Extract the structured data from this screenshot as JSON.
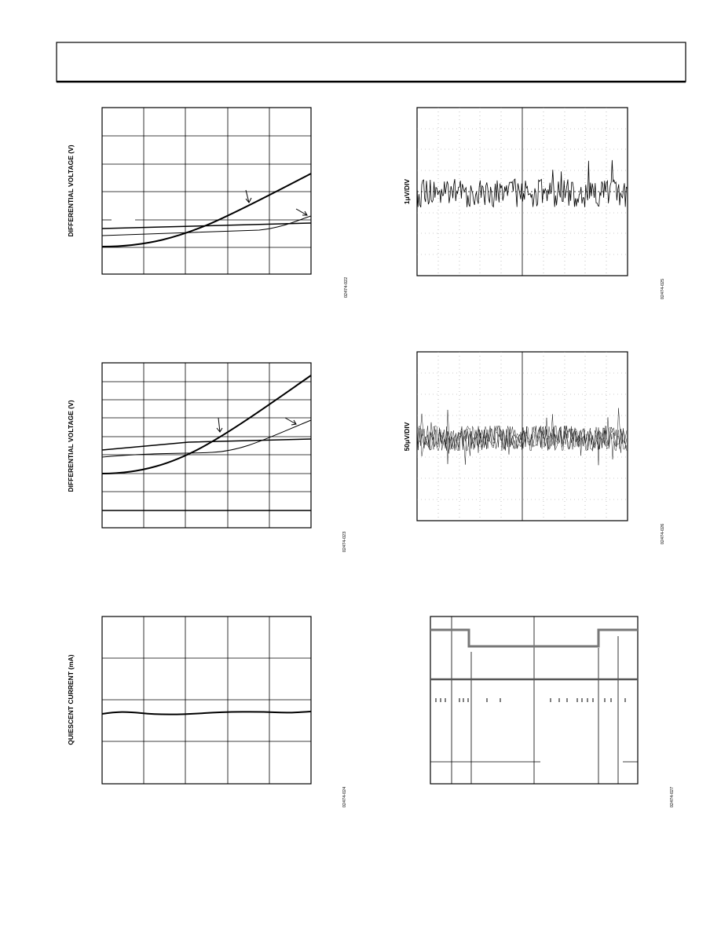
{
  "figures": [
    {
      "y_label": "DIFFERENTIAL VOLTAGE (V)",
      "code": "02474-022"
    },
    {
      "y_label": "1μV/DIV",
      "code": "02474-025"
    },
    {
      "y_label": "DIFFERENTIAL VOLTAGE (V)",
      "code": "02474-023"
    },
    {
      "y_label": "50μV/DIV",
      "code": "02474-026"
    },
    {
      "y_label": "QUIESCENT CURRENT (mA)",
      "code": "02474-024"
    },
    {
      "code": "02474-027"
    }
  ]
}
